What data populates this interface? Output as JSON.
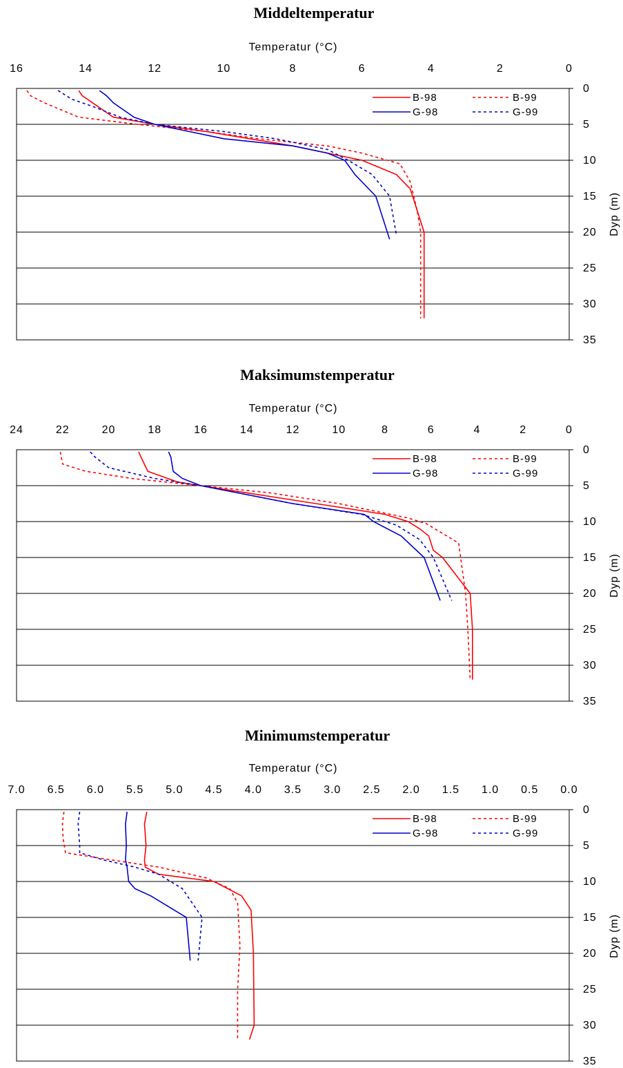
{
  "series_styles": [
    {
      "name": "B-98",
      "color": "#ff0000",
      "dash": "solid"
    },
    {
      "name": "B-99",
      "color": "#ff0000",
      "dash": "dotted"
    },
    {
      "name": "G-98",
      "color": "#0000cc",
      "dash": "solid"
    },
    {
      "name": "G-99",
      "color": "#0000cc",
      "dash": "dotted"
    }
  ],
  "chart_data": [
    {
      "type": "line",
      "title": "Middeltemperatur",
      "xlabel": "Temperatur (°C)",
      "ylabel": "Dyp (m)",
      "x_reversed": true,
      "y_reversed": true,
      "xlim": [
        0,
        16
      ],
      "ylim": [
        0,
        35
      ],
      "x_ticks": [
        "0",
        "2",
        "4",
        "6",
        "8",
        "10",
        "12",
        "14",
        "16"
      ],
      "y_ticks": [
        "0",
        "5",
        "10",
        "15",
        "20",
        "25",
        "30",
        "35"
      ],
      "grid": "horizontal",
      "legend_position": "top-right",
      "series": [
        {
          "name": "B-98",
          "x": [
            14.2,
            14.1,
            13.8,
            13.2,
            12.0,
            10.5,
            8.0,
            6.0,
            5.5,
            5.0,
            4.6,
            4.2,
            4.2,
            4.2,
            4.2
          ],
          "y": [
            0.3,
            1,
            2,
            4,
            5,
            6,
            8,
            10,
            11,
            12,
            14,
            20,
            25,
            30,
            32
          ]
        },
        {
          "name": "B-99",
          "x": [
            15.7,
            15.6,
            15.2,
            14.2,
            12.5,
            10.5,
            9.0,
            7.0,
            6.0,
            4.9,
            4.6,
            4.4,
            4.3,
            4.3,
            4.3
          ],
          "y": [
            0.3,
            1,
            2,
            4,
            5,
            6,
            7,
            8,
            9,
            10.5,
            13,
            17,
            20,
            25,
            32
          ]
        },
        {
          "name": "G-98",
          "x": [
            13.6,
            13.4,
            13.2,
            12.6,
            12.0,
            10.0,
            8.0,
            7.0,
            6.5,
            6.2,
            5.6,
            5.2
          ],
          "y": [
            0.3,
            1,
            2,
            4,
            5,
            7,
            8,
            9,
            10,
            12,
            15,
            21
          ]
        },
        {
          "name": "G-99",
          "x": [
            14.8,
            14.4,
            13.8,
            13.0,
            12.0,
            10.0,
            8.5,
            7.0,
            6.4,
            5.7,
            5.2,
            5.0
          ],
          "y": [
            0.3,
            1.5,
            2.5,
            4,
            5,
            6,
            7,
            8.5,
            10,
            12,
            15,
            20.5
          ]
        }
      ]
    },
    {
      "type": "line",
      "title": "Maksimumstemperatur",
      "xlabel": "Temperatur (°C)",
      "ylabel": "Dyp (m)",
      "x_reversed": true,
      "y_reversed": true,
      "xlim": [
        0,
        24
      ],
      "ylim": [
        0,
        35
      ],
      "x_ticks": [
        "0",
        "2",
        "4",
        "6",
        "8",
        "10",
        "12",
        "14",
        "16",
        "18",
        "20",
        "22",
        "24"
      ],
      "y_ticks": [
        "0",
        "5",
        "10",
        "15",
        "20",
        "25",
        "30",
        "35"
      ],
      "grid": "horizontal",
      "legend_position": "top-right",
      "series": [
        {
          "name": "B-98",
          "x": [
            18.7,
            18.6,
            18.3,
            17.0,
            16.0,
            14.0,
            11.0,
            8.0,
            7.0,
            6.5,
            6.1,
            5.9,
            5.5,
            4.3,
            4.2,
            4.2
          ],
          "y": [
            0.3,
            1,
            3,
            4.5,
            5,
            6,
            7.5,
            9,
            10,
            11,
            12,
            14,
            15,
            20,
            25,
            32
          ]
        },
        {
          "name": "B-99",
          "x": [
            22.1,
            22.0,
            21.0,
            19.0,
            16.0,
            13.0,
            10.0,
            8.5,
            7.0,
            6.2,
            4.8,
            4.5,
            4.4,
            4.3
          ],
          "y": [
            0.3,
            2,
            3,
            4,
            5,
            6,
            7.5,
            8.5,
            9.5,
            10.3,
            13,
            20,
            25,
            32
          ]
        },
        {
          "name": "G-98",
          "x": [
            17.4,
            17.3,
            17.2,
            16.8,
            16.0,
            12.0,
            8.9,
            8.5,
            7.3,
            6.3,
            5.6
          ],
          "y": [
            0.3,
            1,
            3,
            4,
            5,
            7.5,
            9,
            10,
            12,
            15,
            21
          ]
        },
        {
          "name": "G-99",
          "x": [
            20.8,
            20.6,
            20.0,
            18.0,
            16.0,
            12.0,
            9.0,
            7.5,
            6.5,
            5.9,
            5.1
          ],
          "y": [
            0.3,
            1,
            2.5,
            4,
            5,
            7.5,
            9,
            10.5,
            12.5,
            15,
            21
          ]
        }
      ]
    },
    {
      "type": "line",
      "title": "Minimumstemperatur",
      "xlabel": "Temperatur (°C)",
      "ylabel": "Dyp (m)",
      "x_reversed": true,
      "y_reversed": true,
      "xlim": [
        0,
        7
      ],
      "ylim": [
        0,
        35
      ],
      "x_ticks": [
        "0.0",
        "0.5",
        "1.0",
        "1.5",
        "2.0",
        "2.5",
        "3.0",
        "3.5",
        "4.0",
        "4.5",
        "5.0",
        "5.5",
        "6.0",
        "6.5",
        "7.0"
      ],
      "y_ticks": [
        "0",
        "5",
        "10",
        "15",
        "20",
        "25",
        "30",
        "35"
      ],
      "grid": "horizontal",
      "legend_position": "top-right",
      "series": [
        {
          "name": "B-98",
          "x": [
            5.35,
            5.38,
            5.36,
            5.38,
            5.37,
            5.2,
            4.5,
            4.15,
            4.03,
            4.0,
            3.99,
            4.05
          ],
          "y": [
            0.3,
            2,
            5,
            7,
            8,
            9,
            10,
            12,
            14,
            20,
            30,
            32
          ]
        },
        {
          "name": "B-99",
          "x": [
            6.4,
            6.42,
            6.41,
            6.38,
            5.8,
            5.2,
            4.6,
            4.3,
            4.2,
            4.17,
            4.2,
            4.2
          ],
          "y": [
            0.3,
            2,
            4,
            6,
            7,
            8,
            9.5,
            11,
            13,
            19,
            25,
            32
          ]
        },
        {
          "name": "G-98",
          "x": [
            5.6,
            5.62,
            5.61,
            5.62,
            5.6,
            5.58,
            5.5,
            5.3,
            4.85,
            4.8
          ],
          "y": [
            0.3,
            2,
            5,
            7,
            8,
            10,
            11,
            12,
            15,
            21
          ]
        },
        {
          "name": "G-99",
          "x": [
            6.2,
            6.22,
            6.2,
            6.2,
            5.9,
            5.5,
            5.2,
            4.9,
            4.65,
            4.7
          ],
          "y": [
            0.3,
            2,
            5,
            6,
            7,
            8,
            9,
            11,
            15,
            21
          ]
        }
      ]
    }
  ]
}
